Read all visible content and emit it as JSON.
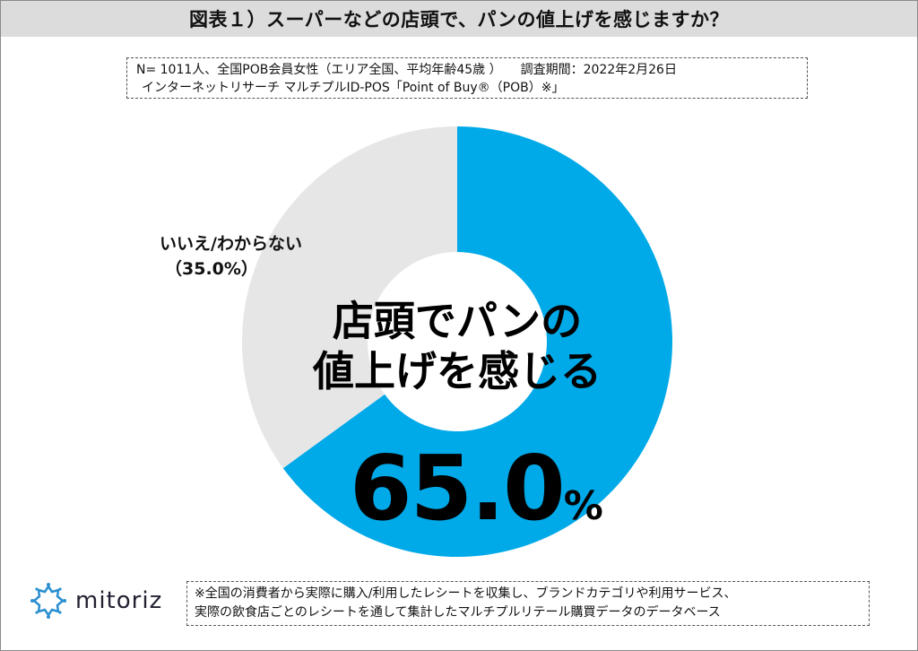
{
  "title": "図表１）スーパーなどの店頭で、パンの値上げを感じますか？",
  "info": {
    "line1": "N= 1011人、全国POB会員女性（エリア全国、平均年齢45歳 ）　　調査期間：2022年2月26日",
    "line2": "インターネットリサーチ マルチプルID-POS「Point of Buy®（POB）※」"
  },
  "center_label": {
    "line1": "店頭でパンの",
    "line2": "値上げを感じる"
  },
  "big_value": {
    "number": "65.0",
    "unit": "%"
  },
  "no_label": {
    "text": "いいえ/わからない",
    "pct": "（35.0%）"
  },
  "logo": {
    "name": "mitoriz"
  },
  "note": {
    "line1": "※全国の消費者から実際に購入/利用したレシートを収集し、ブランドカテゴリや利用サービス、",
    "line2": "実際の飲食店ごとのレシートを通して集計したマルチプルリテール購買データのデータベース"
  },
  "chart_data": {
    "type": "pie",
    "donut": true,
    "categories": [
      "店頭でパンの値上げを感じる",
      "いいえ/わからない"
    ],
    "values": [
      65.0,
      35.0
    ],
    "colors": [
      "#00a9e8",
      "#e6e6e6"
    ],
    "unit": "%"
  }
}
